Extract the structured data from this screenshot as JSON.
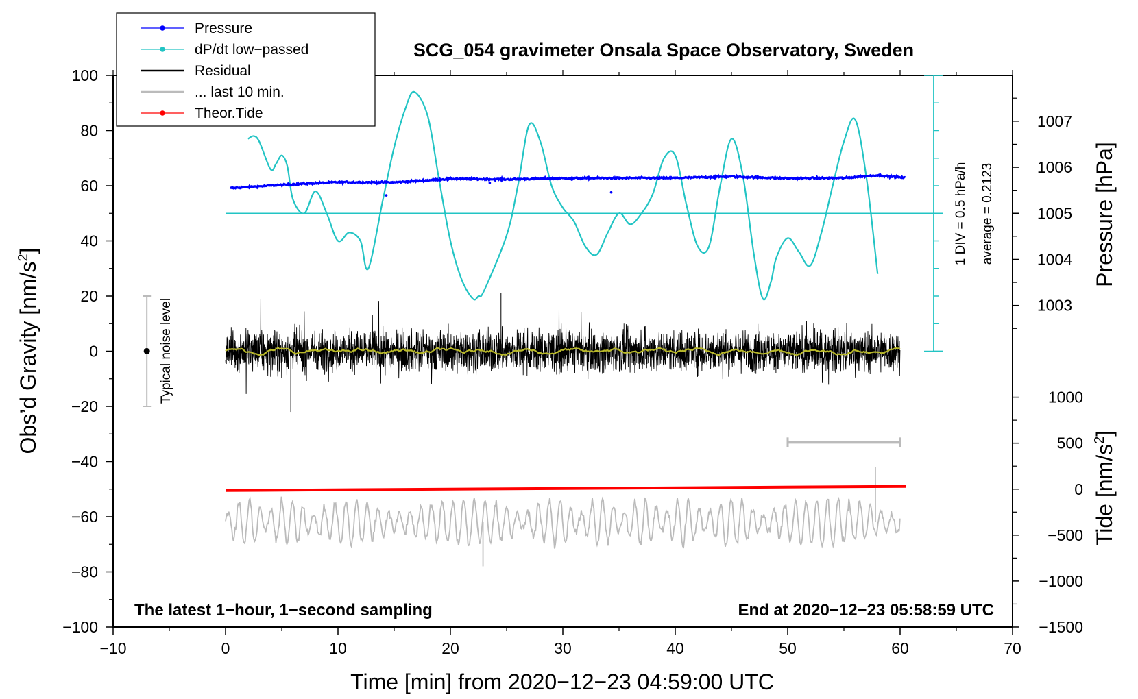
{
  "chart_data": {
    "type": "line",
    "title": "SCG_054 gravimeter Onsala Space Observatory, Sweden",
    "xlabel": "Time [min] from 2020−12−23 04:59:00 UTC",
    "ylabel_main": "Obs’d Gravity [nm/s",
    "ylabel_main_sup": "2",
    "ylabel_main_end": "]",
    "ylabel_pressure": "Pressure [hPa]",
    "ylabel_tide": "Tide [nm/s",
    "ylabel_tide_sup": "2",
    "ylabel_tide_end": "]",
    "xlim": [
      -10,
      70
    ],
    "ylim": [
      -100,
      100
    ],
    "xticks": [
      -10,
      0,
      10,
      20,
      30,
      40,
      50,
      60,
      70
    ],
    "xtick_labels": [
      "−10",
      "0",
      "10",
      "20",
      "30",
      "40",
      "50",
      "60",
      "70"
    ],
    "yticks": [
      -100,
      -80,
      -60,
      -40,
      -20,
      0,
      20,
      40,
      60,
      80,
      100
    ],
    "ytick_labels": [
      "−100",
      "−80",
      "−60",
      "−40",
      "−20",
      "0",
      "20",
      "40",
      "60",
      "80",
      "100"
    ],
    "pressure_ticks": [
      1003,
      1004,
      1005,
      1006,
      1007
    ],
    "pressure_tick_labels": [
      "1003",
      "1004",
      "1005",
      "1006",
      "1007"
    ],
    "pressure_axis": {
      "value_1005_at_gravity": 50,
      "gravity_per_hPa": 16.7
    },
    "tide_ticks": [
      -1500,
      -1000,
      -500,
      0,
      500,
      1000
    ],
    "tide_tick_labels": [
      "−1500",
      "−1000",
      "−500",
      "0",
      "500",
      "1000"
    ],
    "tide_axis": {
      "zero_at_gravity": -50,
      "gravity_per_unit": 0.03333
    },
    "legend": [
      {
        "label": "Pressure",
        "color": "#0000ff",
        "marker": true
      },
      {
        "label": "dP/dt low−passed",
        "color": "#22c4c4",
        "marker": true
      },
      {
        "label": "Residual",
        "color": "#000000",
        "marker": false
      },
      {
        "label": "... last 10 min.",
        "color": "#bbbbbb",
        "marker": false
      },
      {
        "label": "Theor.Tide",
        "color": "#ff0000",
        "marker": true
      }
    ],
    "notes": {
      "left": "The latest 1−hour, 1−second sampling",
      "right": "End at 2020−12−23 05:58:59 UTC",
      "div_label": "1 DIV = 0.5 hPa/h",
      "average_label": "average = 0.2123",
      "noise_label": "Typical noise level"
    },
    "noise_bar": {
      "x": -7,
      "center": 0,
      "half_range": 20
    },
    "ten_min_bar": {
      "x_start": 50,
      "x_end": 60,
      "y": -33
    },
    "series": [
      {
        "name": "Pressure",
        "color": "#0000ff",
        "kind": "pressure_noisy",
        "x": [
          0,
          5,
          10,
          15,
          20,
          25,
          30,
          35,
          40,
          45,
          50,
          55,
          58,
          60.5
        ],
        "values": [
          59,
          60.3,
          61.3,
          61.2,
          62.5,
          62.3,
          62.7,
          62.8,
          62.8,
          63.3,
          62.7,
          62.8,
          63.8,
          62.8
        ]
      },
      {
        "name": "dP/dt low−passed",
        "color": "#22c4c4",
        "kind": "line",
        "x": [
          2,
          2.5,
          3,
          4,
          4.5,
          5,
          5.5,
          6,
          7,
          8,
          9,
          10,
          11,
          12,
          12.7,
          14,
          15,
          16,
          16.8,
          18,
          19,
          20,
          21,
          22,
          22.5,
          23,
          25,
          26,
          27,
          28,
          29,
          30,
          31,
          32,
          33,
          34,
          35,
          36,
          37,
          38,
          39,
          40,
          41,
          42,
          43,
          44,
          45,
          46,
          47,
          47.8,
          48.5,
          49,
          50,
          51,
          52,
          53,
          54,
          55,
          56,
          57,
          58
        ],
        "values": [
          77,
          78,
          76,
          66,
          68,
          71,
          67,
          55,
          50,
          58,
          50,
          40,
          43,
          40,
          30,
          55,
          74,
          88,
          94,
          85,
          62,
          40,
          26,
          19,
          20,
          22,
          42,
          60,
          82,
          76,
          60,
          52,
          47,
          38,
          35,
          43,
          50,
          46,
          50,
          57,
          70,
          71,
          53,
          38,
          38,
          60,
          77,
          64,
          35,
          19,
          25,
          34,
          41,
          36,
          31,
          43,
          60,
          76,
          84,
          63,
          28
        ]
      },
      {
        "name": "Residual",
        "color": "#000000",
        "kind": "noise",
        "x_range": [
          0,
          60
        ],
        "center": 0,
        "amplitude": 5.5,
        "extremes": [
          -22,
          21
        ]
      },
      {
        "name": "Residual smoothed",
        "color": "#b8b82a",
        "kind": "smooth_noise",
        "x_range": [
          0,
          60
        ],
        "center": 0,
        "amplitude": 1.2
      },
      {
        "name": "Theor.Tide",
        "color": "#ff0000",
        "kind": "line",
        "x": [
          0,
          60.5
        ],
        "values": [
          -50.5,
          -49
        ]
      },
      {
        "name": "... last 10 min.",
        "color": "#bbbbbb",
        "kind": "oscillation",
        "x_range": [
          0,
          60
        ],
        "center": -62,
        "amplitude": 6,
        "extremes": [
          -78,
          -42
        ]
      }
    ]
  }
}
